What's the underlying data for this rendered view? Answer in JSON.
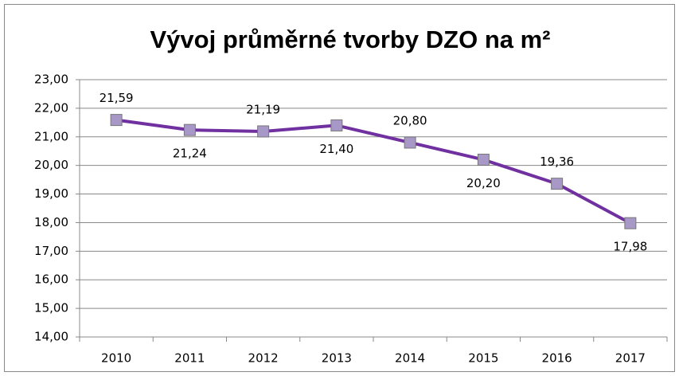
{
  "chart_data": {
    "type": "line",
    "title": "Vývoj průměrné tvorby DZO na m²",
    "categories": [
      "2010",
      "2011",
      "2012",
      "2013",
      "2014",
      "2015",
      "2016",
      "2017"
    ],
    "series": [
      {
        "color": "#7030a0",
        "marker_color": "#a898c8",
        "values": [
          21.59,
          21.24,
          21.19,
          21.4,
          20.8,
          20.2,
          19.36,
          17.98
        ],
        "value_labels": [
          "21,59",
          "21,24",
          "21,19",
          "21,40",
          "20,80",
          "20,20",
          "19,36",
          "17,98"
        ]
      }
    ],
    "ylim": [
      14,
      23
    ],
    "yticks": [
      {
        "value": 14,
        "label": "14,00"
      },
      {
        "value": 15,
        "label": "15,00"
      },
      {
        "value": 16,
        "label": "16,00"
      },
      {
        "value": 17,
        "label": "17,00"
      },
      {
        "value": 18,
        "label": "18,00"
      },
      {
        "value": 19,
        "label": "19,00"
      },
      {
        "value": 20,
        "label": "20,00"
      },
      {
        "value": 21,
        "label": "21,00"
      },
      {
        "value": 22,
        "label": "22,00"
      },
      {
        "value": 23,
        "label": "23,00"
      }
    ],
    "grid": true
  }
}
